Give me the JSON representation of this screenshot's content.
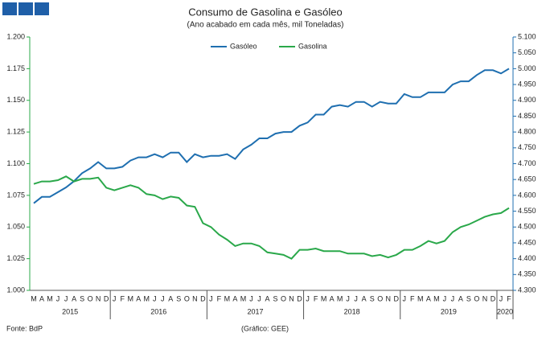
{
  "chart_data": {
    "type": "line",
    "title": "Consumo de Gasolina e Gasóleo",
    "subtitle": "(Ano acabado em cada mês, mil Toneladas)",
    "source": "Fonte: BdP",
    "credit": "(Gráfico: GEE)",
    "categories": [
      "M",
      "A",
      "M",
      "J",
      "J",
      "A",
      "S",
      "O",
      "N",
      "D",
      "J",
      "F",
      "M",
      "A",
      "M",
      "J",
      "J",
      "A",
      "S",
      "O",
      "N",
      "D",
      "J",
      "F",
      "M",
      "A",
      "M",
      "J",
      "J",
      "A",
      "S",
      "O",
      "N",
      "D",
      "J",
      "F",
      "M",
      "A",
      "M",
      "J",
      "J",
      "A",
      "S",
      "O",
      "N",
      "D",
      "J",
      "F",
      "M",
      "A",
      "M",
      "J",
      "J",
      "A",
      "S",
      "O",
      "N",
      "D",
      "J",
      "F"
    ],
    "years": [
      "2015",
      "2016",
      "2017",
      "2018",
      "2019",
      "2020"
    ],
    "series": [
      {
        "name": "Gasóleo",
        "color": "#1f6fb0",
        "axis": "y2",
        "values": [
          4575,
          4595,
          4595,
          4610,
          4625,
          4645,
          4670,
          4685,
          4705,
          4685,
          4685,
          4690,
          4710,
          4720,
          4720,
          4730,
          4720,
          4735,
          4735,
          4705,
          4730,
          4720,
          4725,
          4725,
          4730,
          4715,
          4745,
          4760,
          4780,
          4780,
          4795,
          4800,
          4800,
          4820,
          4830,
          4855,
          4855,
          4880,
          4885,
          4880,
          4895,
          4895,
          4880,
          4895,
          4890,
          4890,
          4920,
          4910,
          4910,
          4925,
          4925,
          4925,
          4950,
          4960,
          4960,
          4980,
          4995,
          4995,
          4985,
          5000
        ]
      },
      {
        "name": "Gasolina",
        "color": "#2aa84a",
        "values": [
          1084,
          1086,
          1086,
          1087,
          1090,
          1086,
          1088,
          1088,
          1089,
          1081,
          1079,
          1081,
          1083,
          1081,
          1076,
          1075,
          1072,
          1074,
          1073,
          1067,
          1066,
          1053,
          1050,
          1044,
          1040,
          1035,
          1037,
          1037,
          1035,
          1030,
          1029,
          1028,
          1025,
          1032,
          1032,
          1033,
          1031,
          1031,
          1031,
          1029,
          1029,
          1029,
          1027,
          1028,
          1026,
          1028,
          1032,
          1032,
          1035,
          1039,
          1037,
          1039,
          1046,
          1050,
          1052,
          1055,
          1058,
          1060,
          1061,
          1065
        ]
      }
    ],
    "ylim": [
      1000,
      1200
    ],
    "yticks": [
      {
        "value": 1000,
        "label": "1.000"
      },
      {
        "value": 1025,
        "label": "1.025"
      },
      {
        "value": 1050,
        "label": "1.050"
      },
      {
        "value": 1075,
        "label": "1.075"
      },
      {
        "value": 1100,
        "label": "1.100"
      },
      {
        "value": 1125,
        "label": "1.125"
      },
      {
        "value": 1150,
        "label": "1.150"
      },
      {
        "value": 1175,
        "label": "1.175"
      },
      {
        "value": 1200,
        "label": "1.200"
      }
    ],
    "y2lim": [
      4300,
      5100
    ],
    "y2ticks": [
      {
        "value": 4300,
        "label": "4.300"
      },
      {
        "value": 4350,
        "label": "4.350"
      },
      {
        "value": 4400,
        "label": "4.400"
      },
      {
        "value": 4450,
        "label": "4.450"
      },
      {
        "value": 4500,
        "label": "4.500"
      },
      {
        "value": 4550,
        "label": "4.550"
      },
      {
        "value": 4600,
        "label": "4.600"
      },
      {
        "value": 4650,
        "label": "4.650"
      },
      {
        "value": 4700,
        "label": "4.700"
      },
      {
        "value": 4750,
        "label": "4.750"
      },
      {
        "value": 4800,
        "label": "4.800"
      },
      {
        "value": 4850,
        "label": "4.850"
      },
      {
        "value": 4900,
        "label": "4.900"
      },
      {
        "value": 4950,
        "label": "4.950"
      },
      {
        "value": 5000,
        "label": "5.000"
      },
      {
        "value": 5050,
        "label": "5.050"
      },
      {
        "value": 5100,
        "label": "5.100"
      }
    ],
    "y_color": "#2aa84a",
    "y2_color": "#1f6fb0",
    "legend": "top"
  }
}
